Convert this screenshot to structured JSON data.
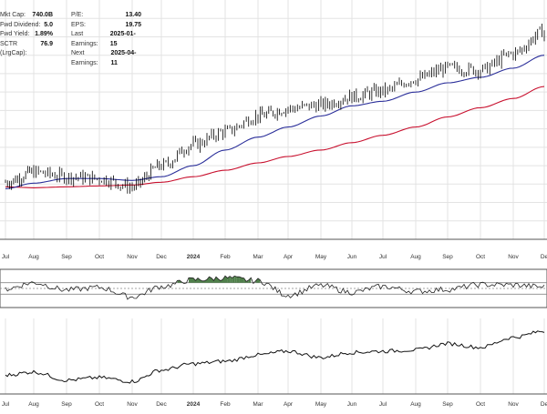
{
  "fundamentals": {
    "left": [
      {
        "label": "Mkt Cap:",
        "value": "740.0B"
      },
      {
        "label": "Fwd Dividend:",
        "value": "5.0"
      },
      {
        "label": "Fwd Yield:",
        "value": "1.89%"
      },
      {
        "label": "SCTR (LrgCap):",
        "value": "76.9"
      }
    ],
    "right": [
      {
        "label": "P/E:",
        "value": "13.40"
      },
      {
        "label": "EPS:",
        "value": "19.75"
      },
      {
        "label": "Last Earnings:",
        "value": "2025-01-15"
      },
      {
        "label": "Next Earnings:",
        "value": "2025-04-11"
      }
    ]
  },
  "colors": {
    "price": "#000000",
    "ma_short": "#2b2f9a",
    "ma_long": "#c8102e",
    "indicator_fill": "#4f7f4a",
    "grid": "#e3e3e3",
    "panel_border": "#555555"
  },
  "chart_data": [
    {
      "type": "line",
      "panel": "price",
      "x": [
        "Jul",
        "Aug",
        "Sep",
        "Oct",
        "Nov",
        "Dec",
        "2024",
        "Feb",
        "Mar",
        "Apr",
        "May",
        "Jun",
        "Jul",
        "Aug",
        "Sep",
        "Oct",
        "Nov",
        "Dec"
      ],
      "x_labels": [
        "Jul",
        "Aug",
        "Sep",
        "Oct",
        "Nov",
        "Dec",
        "2024",
        "Feb",
        "Mar",
        "Apr",
        "May",
        "Jun",
        "Jul",
        "Aug",
        "Sep",
        "Oct",
        "Nov",
        "De"
      ],
      "series": [
        {
          "key": "price",
          "values": [
            0.62,
            0.73,
            0.68,
            0.66,
            0.57,
            0.8,
            1.03,
            1.17,
            1.34,
            1.42,
            1.46,
            1.55,
            1.61,
            1.74,
            1.86,
            1.84,
            2.02,
            2.26
          ]
        },
        {
          "key": "ma_short",
          "values": [
            0.55,
            0.61,
            0.66,
            0.66,
            0.64,
            0.68,
            0.8,
            0.97,
            1.11,
            1.22,
            1.34,
            1.45,
            1.5,
            1.6,
            1.7,
            1.76,
            1.86,
            2.0
          ]
        },
        {
          "key": "ma_long",
          "values": [
            0.57,
            0.56,
            0.57,
            0.58,
            0.59,
            0.62,
            0.68,
            0.75,
            0.83,
            0.9,
            0.97,
            1.05,
            1.13,
            1.22,
            1.33,
            1.43,
            1.53,
            1.66
          ]
        }
      ],
      "ylim": [
        0,
        2.6
      ],
      "grid": true
    },
    {
      "type": "area",
      "panel": "indicator",
      "x": [
        "Jul",
        "Aug",
        "Sep",
        "Oct",
        "Nov",
        "Dec",
        "2024",
        "Feb",
        "Mar",
        "Apr",
        "May",
        "Jun",
        "Jul",
        "Aug",
        "Sep",
        "Oct",
        "Nov",
        "Dec"
      ],
      "values": [
        -2,
        30,
        -8,
        5,
        -45,
        10,
        45,
        55,
        40,
        -35,
        15,
        -20,
        10,
        -15,
        -5,
        20,
        18,
        8
      ],
      "upper_band": 30,
      "center": 0,
      "lower_band": -30,
      "ylim": [
        -100,
        100
      ]
    },
    {
      "type": "line",
      "panel": "lower",
      "x": [
        "Jul",
        "Aug",
        "Sep",
        "Oct",
        "Nov",
        "Dec",
        "2024",
        "Feb",
        "Mar",
        "Apr",
        "May",
        "Jun",
        "Jul",
        "Aug",
        "Sep",
        "Oct",
        "Nov",
        "Dec"
      ],
      "values": [
        0.3,
        0.35,
        0.22,
        0.26,
        0.2,
        0.38,
        0.48,
        0.52,
        0.62,
        0.68,
        0.58,
        0.66,
        0.68,
        0.7,
        0.8,
        0.74,
        0.9,
        1.0
      ],
      "ylim": [
        0,
        1.2
      ]
    }
  ]
}
